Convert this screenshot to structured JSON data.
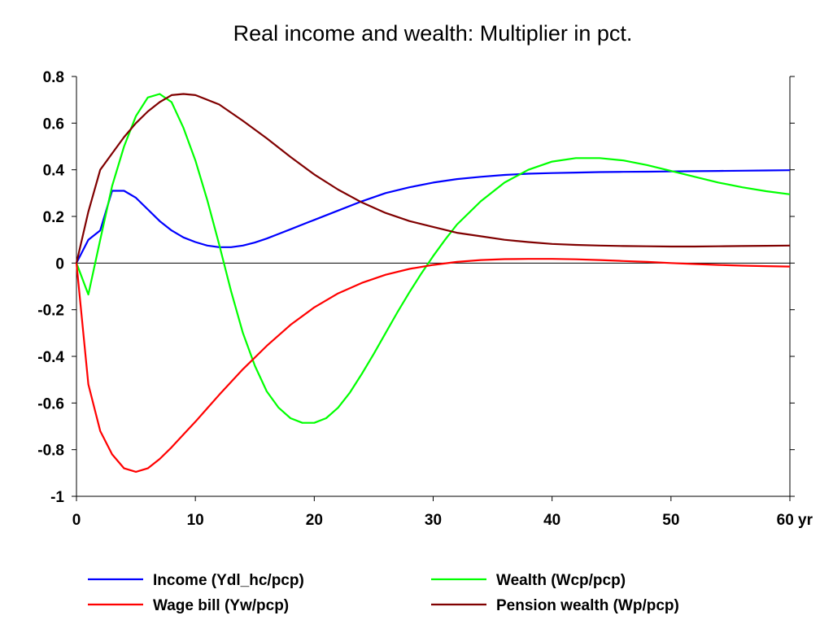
{
  "chart_data": {
    "type": "line",
    "title": "Real income and wealth: Multiplier in pct.",
    "xlabel": "",
    "ylabel": "",
    "xlim": [
      0,
      60
    ],
    "ylim": [
      -1,
      0.8
    ],
    "x_ticks": [
      0,
      10,
      20,
      30,
      40,
      50,
      60
    ],
    "x_tick_labels": [
      "0",
      "10",
      "20",
      "30",
      "40",
      "50",
      "60 yr"
    ],
    "y_ticks": [
      -1,
      -0.8,
      -0.6,
      -0.4,
      -0.2,
      0,
      0.2,
      0.4,
      0.6,
      0.8
    ],
    "y_tick_labels": [
      "-1",
      "-0.8",
      "-0.6",
      "-0.4",
      "-0.2",
      "0",
      "0.2",
      "0.4",
      "0.6",
      "0.8"
    ],
    "grid": false,
    "zero_line": true,
    "legend_position": "bottom",
    "series": [
      {
        "name": "Income (Ydl_hc/pcp)",
        "color": "#0000ff",
        "x": [
          0,
          1,
          2,
          3,
          4,
          5,
          6,
          7,
          8,
          9,
          10,
          11,
          12,
          13,
          14,
          15,
          16,
          17,
          18,
          19,
          20,
          22,
          24,
          26,
          28,
          30,
          32,
          34,
          36,
          38,
          40,
          42,
          44,
          46,
          48,
          50,
          52,
          54,
          56,
          58,
          60
        ],
        "values": [
          0,
          0.1,
          0.14,
          0.31,
          0.31,
          0.28,
          0.23,
          0.18,
          0.14,
          0.11,
          0.09,
          0.075,
          0.068,
          0.068,
          0.075,
          0.088,
          0.105,
          0.125,
          0.145,
          0.165,
          0.185,
          0.225,
          0.265,
          0.3,
          0.325,
          0.345,
          0.36,
          0.37,
          0.378,
          0.383,
          0.386,
          0.388,
          0.39,
          0.391,
          0.392,
          0.393,
          0.394,
          0.395,
          0.396,
          0.397,
          0.398
        ]
      },
      {
        "name": "Wealth (Wcp/pcp)",
        "color": "#00ff00",
        "x": [
          0,
          1,
          2,
          3,
          4,
          5,
          6,
          7,
          8,
          9,
          10,
          11,
          12,
          13,
          14,
          15,
          16,
          17,
          18,
          19,
          20,
          21,
          22,
          23,
          24,
          25,
          26,
          27,
          28,
          29,
          30,
          31,
          32,
          34,
          36,
          38,
          40,
          42,
          44,
          46,
          48,
          50,
          52,
          54,
          56,
          58,
          60
        ],
        "values": [
          0,
          -0.135,
          0.1,
          0.33,
          0.5,
          0.63,
          0.71,
          0.725,
          0.69,
          0.58,
          0.44,
          0.27,
          0.08,
          -0.12,
          -0.3,
          -0.44,
          -0.55,
          -0.62,
          -0.665,
          -0.685,
          -0.685,
          -0.665,
          -0.62,
          -0.555,
          -0.475,
          -0.39,
          -0.3,
          -0.21,
          -0.125,
          -0.045,
          0.03,
          0.1,
          0.165,
          0.265,
          0.345,
          0.4,
          0.435,
          0.45,
          0.45,
          0.44,
          0.42,
          0.395,
          0.37,
          0.345,
          0.325,
          0.308,
          0.295
        ]
      },
      {
        "name": "Wage bill (Yw/pcp)",
        "color": "#ff0000",
        "x": [
          0,
          1,
          2,
          3,
          4,
          5,
          6,
          7,
          8,
          9,
          10,
          12,
          14,
          16,
          18,
          20,
          22,
          24,
          26,
          28,
          30,
          32,
          34,
          36,
          38,
          40,
          42,
          44,
          46,
          48,
          50,
          52,
          54,
          56,
          58,
          60
        ],
        "values": [
          0,
          -0.52,
          -0.72,
          -0.82,
          -0.88,
          -0.895,
          -0.88,
          -0.84,
          -0.79,
          -0.735,
          -0.68,
          -0.565,
          -0.455,
          -0.355,
          -0.265,
          -0.19,
          -0.13,
          -0.085,
          -0.05,
          -0.025,
          -0.008,
          0.005,
          0.013,
          0.017,
          0.018,
          0.018,
          0.016,
          0.013,
          0.009,
          0.005,
          0.0,
          -0.004,
          -0.008,
          -0.011,
          -0.013,
          -0.015
        ]
      },
      {
        "name": "Pension wealth (Wp/pcp)",
        "color": "#800000",
        "x": [
          0,
          1,
          2,
          3,
          4,
          5,
          6,
          7,
          8,
          9,
          10,
          12,
          14,
          16,
          18,
          20,
          22,
          24,
          26,
          28,
          30,
          32,
          34,
          36,
          38,
          40,
          42,
          44,
          46,
          48,
          50,
          52,
          54,
          56,
          58,
          60
        ],
        "values": [
          0,
          0.22,
          0.4,
          0.47,
          0.54,
          0.6,
          0.65,
          0.69,
          0.72,
          0.725,
          0.72,
          0.68,
          0.61,
          0.535,
          0.455,
          0.38,
          0.315,
          0.26,
          0.215,
          0.18,
          0.155,
          0.13,
          0.115,
          0.1,
          0.09,
          0.082,
          0.078,
          0.075,
          0.073,
          0.072,
          0.071,
          0.071,
          0.072,
          0.073,
          0.074,
          0.075
        ]
      }
    ]
  }
}
